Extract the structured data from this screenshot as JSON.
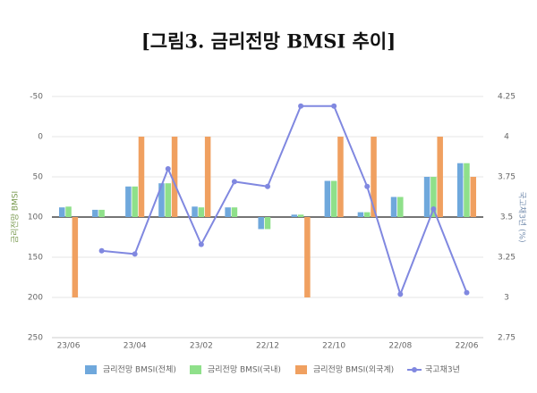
{
  "chart_data": {
    "type": "bar-line",
    "title": "[그림3. 금리전망 BMSI 추이]",
    "y_label": "금리전망 BMSI",
    "y2_label": "국고채3년 (%)",
    "categories": [
      "23/06",
      null,
      "23/04",
      null,
      "23/02",
      null,
      "22/12",
      null,
      "22/10",
      null,
      "22/08",
      null,
      "22/06"
    ],
    "ylim": [
      -50,
      250
    ],
    "yticks": [
      -50,
      0,
      50,
      100,
      150,
      200,
      250
    ],
    "y_inverted": true,
    "baseline": 100,
    "y2lim": [
      2.75,
      4.25
    ],
    "y2ticks": [
      2.75,
      3,
      3.25,
      3.5,
      3.75,
      4,
      4.25
    ],
    "grid": true,
    "legend": "bottom",
    "series": [
      {
        "name": "금리전망 BMSI(전체)",
        "type": "bar",
        "color": "#6fa8dc",
        "values": [
          88,
          91,
          62,
          58,
          87,
          88,
          115,
          97,
          55,
          94,
          75,
          50,
          33
        ]
      },
      {
        "name": "금리전망 BMSI(국내)",
        "type": "bar",
        "color": "#8fe08a",
        "values": [
          87,
          91,
          62,
          58,
          88,
          88,
          115,
          97,
          55,
          94,
          75,
          50,
          33
        ]
      },
      {
        "name": "금리전망 BMSI(외국계)",
        "type": "bar",
        "color": "#f0a060",
        "values": [
          200,
          100,
          0,
          0,
          0,
          100,
          100,
          200,
          0,
          0,
          100,
          0,
          50
        ]
      },
      {
        "name": "국고채3년",
        "type": "line",
        "axis": "y2",
        "color": "#8088e0",
        "values": [
          null,
          3.29,
          3.27,
          3.8,
          3.33,
          3.72,
          3.69,
          4.19,
          4.19,
          3.69,
          3.02,
          3.55,
          3.03
        ]
      }
    ]
  }
}
